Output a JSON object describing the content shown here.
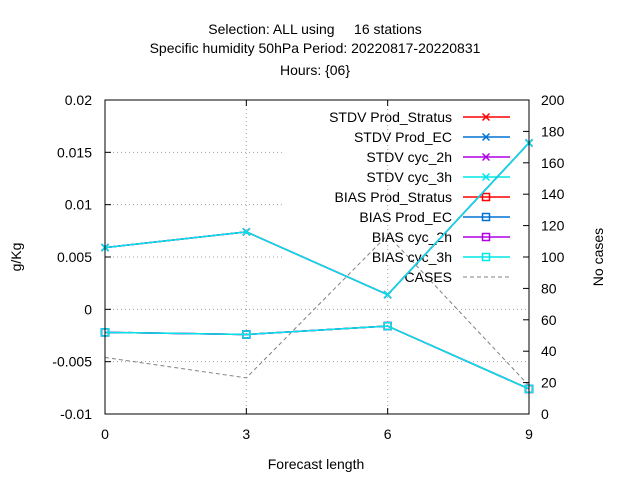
{
  "chart_data": {
    "type": "line",
    "title_lines": [
      "Selection: ALL using     16 stations",
      "Specific humidity 50hPa   Period: 20220817-20220831",
      "Hours: {06}"
    ],
    "xlabel": "Forecast length",
    "ylabel": "g/Kg",
    "y2label": "No cases",
    "x": [
      0,
      3,
      6,
      9
    ],
    "xlim": [
      0,
      9
    ],
    "ylim": [
      -0.01,
      0.02
    ],
    "y2lim": [
      0,
      200
    ],
    "x_ticks": [
      "0",
      "3",
      "6",
      "9"
    ],
    "y_ticks": [
      "-0.01",
      "-0.005",
      "0",
      "0.005",
      "0.01",
      "0.015",
      "0.02"
    ],
    "y2_ticks": [
      "0",
      "20",
      "40",
      "60",
      "80",
      "100",
      "120",
      "140",
      "160",
      "180",
      "200"
    ],
    "grid": true,
    "legend_position": "top-right",
    "series": [
      {
        "name": "STDV Prod_Stratus",
        "axis": "y",
        "color": "#ff0000",
        "marker": "x",
        "values": [
          0.0059,
          0.0074,
          0.0014,
          0.0159
        ]
      },
      {
        "name": "STDV Prod_EC",
        "axis": "y",
        "color": "#0072d2",
        "marker": "x",
        "values": [
          0.0059,
          0.0074,
          0.0014,
          0.0159
        ]
      },
      {
        "name": "STDV cyc_2h",
        "axis": "y",
        "color": "#b000e6",
        "marker": "x",
        "values": [
          0.0059,
          0.0074,
          0.0014,
          0.0159
        ]
      },
      {
        "name": "STDV cyc_3h",
        "axis": "y",
        "color": "#00e5e5",
        "marker": "x",
        "values": [
          0.0059,
          0.0074,
          0.0014,
          0.0159
        ]
      },
      {
        "name": "BIAS Prod_Stratus",
        "axis": "y",
        "color": "#ff0000",
        "marker": "square",
        "values": [
          -0.0022,
          -0.0024,
          -0.0016,
          -0.0076
        ]
      },
      {
        "name": "BIAS Prod_EC",
        "axis": "y",
        "color": "#0072d2",
        "marker": "square",
        "values": [
          -0.0022,
          -0.0024,
          -0.0016,
          -0.0076
        ]
      },
      {
        "name": "BIAS cyc_2h",
        "axis": "y",
        "color": "#b000e6",
        "marker": "square",
        "values": [
          -0.0022,
          -0.0024,
          -0.0016,
          -0.0076
        ]
      },
      {
        "name": "BIAS cyc_3h",
        "axis": "y",
        "color": "#00e5e5",
        "marker": "square",
        "values": [
          -0.0022,
          -0.0024,
          -0.0016,
          -0.0076
        ]
      },
      {
        "name": "CASES",
        "axis": "y2",
        "color": "#808080",
        "marker": "none",
        "dashed": true,
        "values": [
          36,
          23,
          114,
          18
        ]
      }
    ]
  }
}
